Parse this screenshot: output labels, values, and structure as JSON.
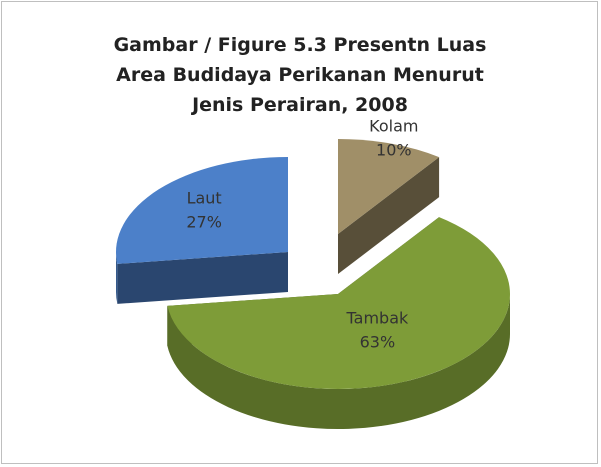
{
  "chart_data": {
    "type": "pie",
    "title": "Gambar / Figure 5.3 Presentn Luas Area Budidaya Perikanan Menurut Jenis Perairan, 2008",
    "categories": [
      "Kolam",
      "Tambak",
      "Laut"
    ],
    "values": [
      10,
      63,
      27
    ],
    "value_labels": [
      "10%",
      "63%",
      "27%"
    ],
    "colors": [
      "#a08f68",
      "#7e9c38",
      "#4c80c9"
    ]
  }
}
